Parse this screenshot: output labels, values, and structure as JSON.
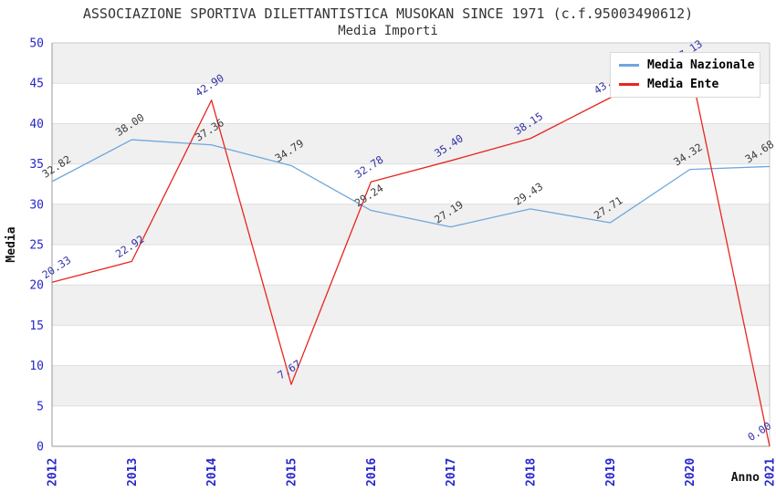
{
  "header": {
    "title": "ASSOCIAZIONE SPORTIVA DILETTANTISTICA MUSOKAN SINCE 1971 (c.f.95003490612)",
    "subtitle": "Media Importi"
  },
  "legend": {
    "items": [
      {
        "label": "Media Nazionale",
        "color": "#6fa8dc"
      },
      {
        "label": "Media Ente",
        "color": "#e8261f"
      }
    ]
  },
  "axes": {
    "y_label": "Media",
    "x_label": "Anno",
    "y_ticks": [
      "0",
      "5",
      "10",
      "15",
      "20",
      "25",
      "30",
      "35",
      "40",
      "45",
      "50"
    ],
    "x_ticks": [
      "2012",
      "2013",
      "2014",
      "2015",
      "2016",
      "2017",
      "2018",
      "2019",
      "2020",
      "2021"
    ]
  },
  "chart_data": {
    "type": "line",
    "title": "ASSOCIAZIONE SPORTIVA DILETTANTISTICA MUSOKAN SINCE 1971 (c.f.95003490612)",
    "subtitle": "Media Importi",
    "categories": [
      "2012",
      "2013",
      "2014",
      "2015",
      "2016",
      "2017",
      "2018",
      "2019",
      "2020",
      "2021"
    ],
    "series": [
      {
        "name": "Media Nazionale",
        "color": "#6fa8dc",
        "label_color": "#3d3d3d",
        "values": [
          32.82,
          38.0,
          37.36,
          34.79,
          29.24,
          27.19,
          29.43,
          27.71,
          34.32,
          34.68
        ]
      },
      {
        "name": "Media Ente",
        "color": "#e8261f",
        "label_color": "#3232a8",
        "values": [
          20.33,
          22.92,
          42.9,
          7.67,
          32.78,
          35.4,
          38.15,
          43.2,
          47.13,
          0.0
        ]
      }
    ],
    "ylim": [
      0,
      50
    ],
    "xlabel": "Anno",
    "ylabel": "Media",
    "legend_position": "top-right",
    "grid": true,
    "background_bands": "alternating gray/white every 5 units",
    "estimated_labels": "Media Ente 2019 (43.20) and 2020 (47.13) labels are partially occluded by the legend in the source image; values estimated from visible digits and line position"
  }
}
